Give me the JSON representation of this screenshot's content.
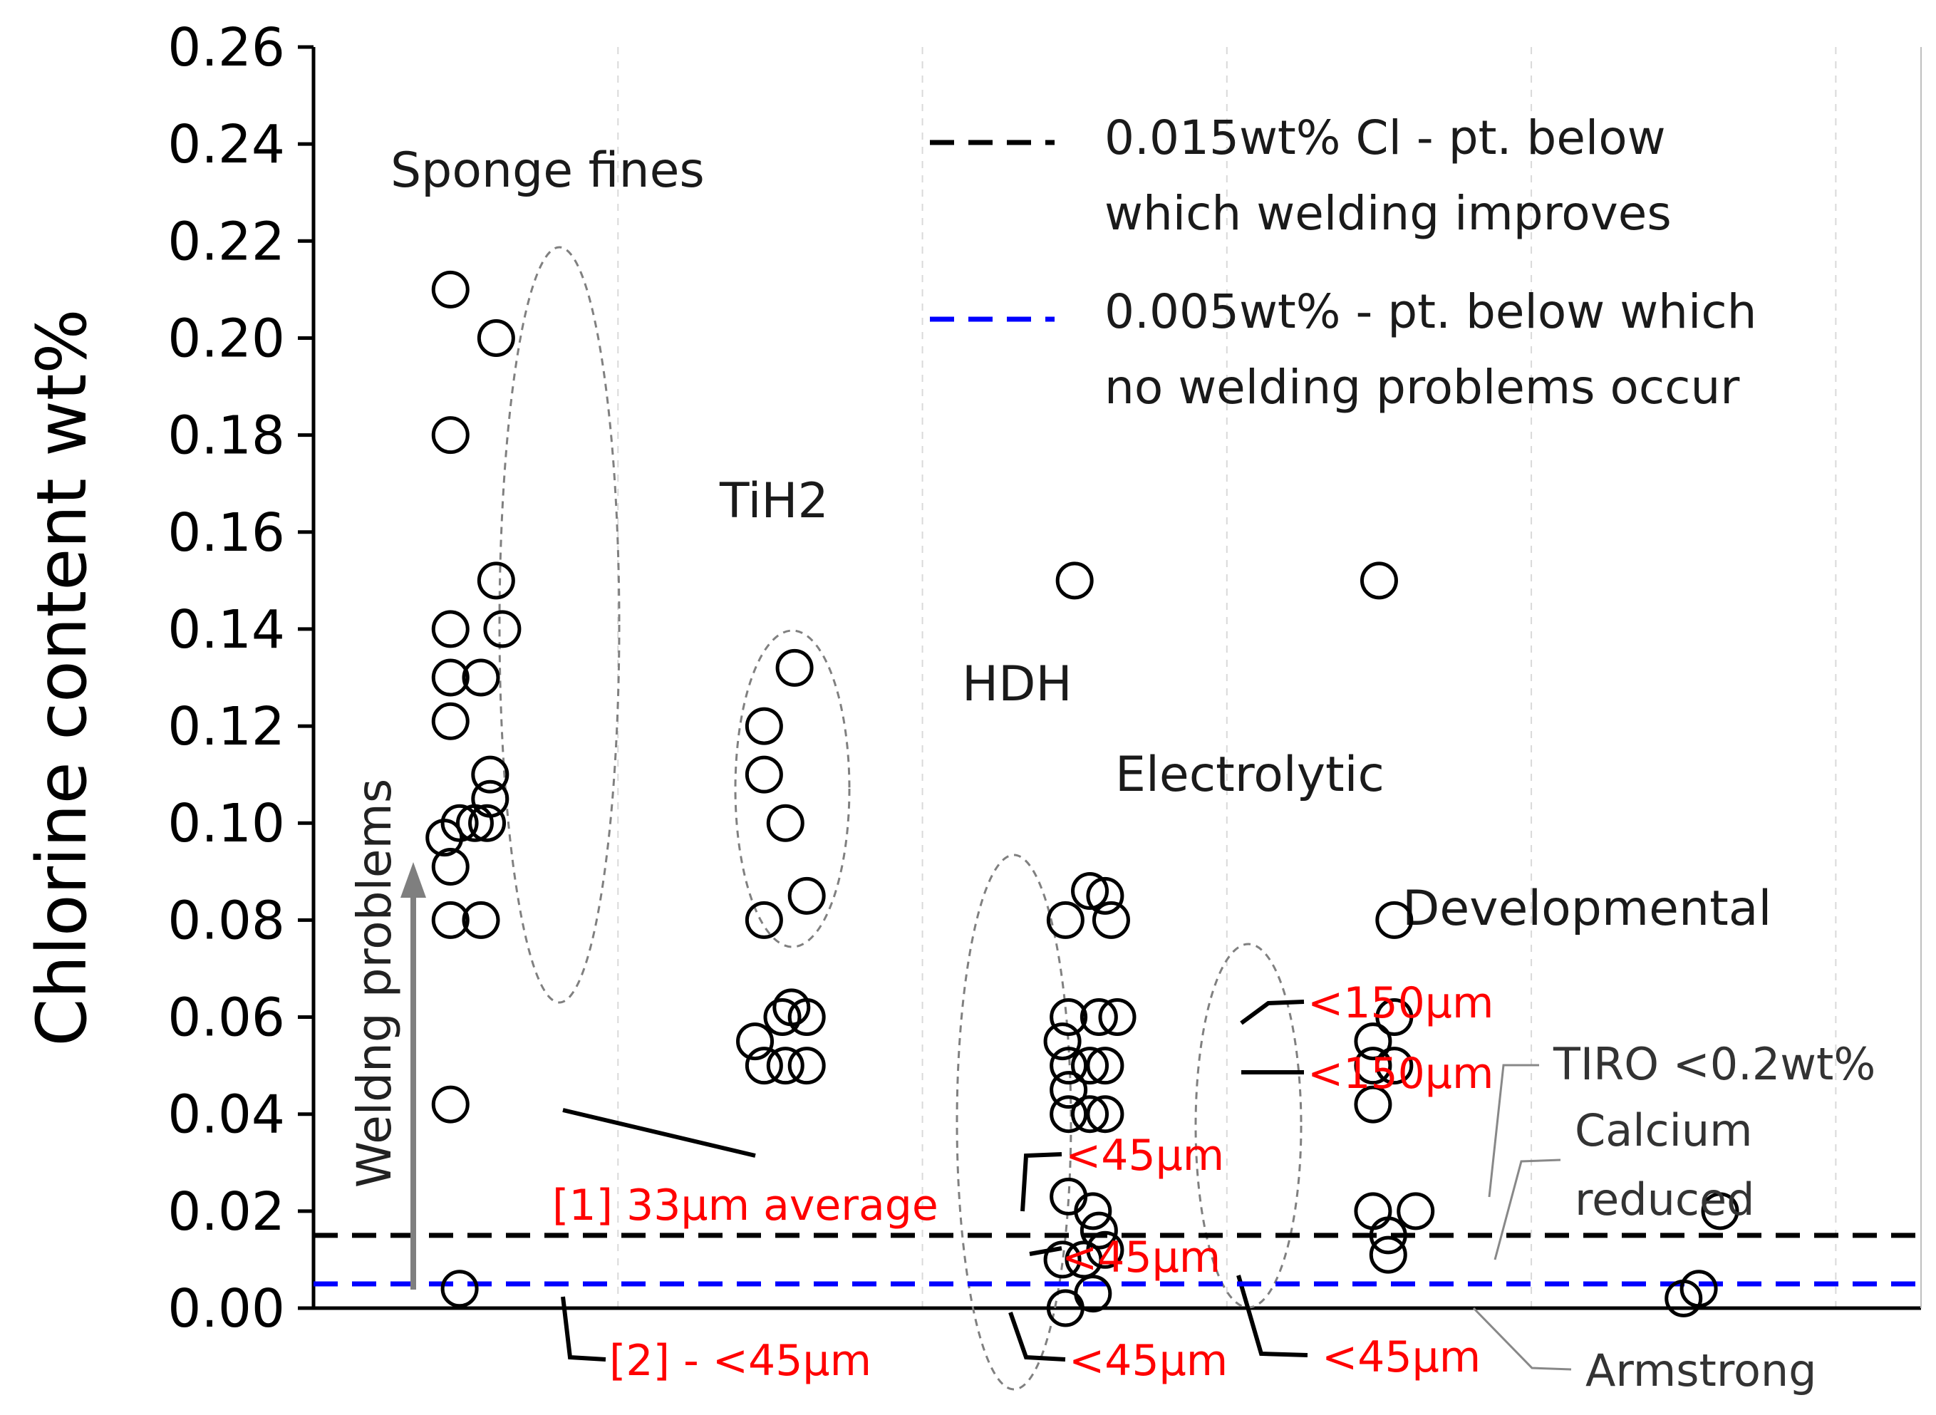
{
  "chart_data": {
    "type": "scatter",
    "title": "",
    "xlabel": "",
    "ylabel": "Chlorine content wt%",
    "ylim": [
      0,
      0.26
    ],
    "y_ticks": [
      "0.00",
      "0.02",
      "0.04",
      "0.06",
      "0.08",
      "0.10",
      "0.12",
      "0.14",
      "0.16",
      "0.18",
      "0.20",
      "0.22",
      "0.24",
      "0.26"
    ],
    "grid": "vertical dashed",
    "groups": [
      {
        "name": "Sponge fines",
        "points": [
          {
            "x": 0.95,
            "y": 0.21
          },
          {
            "x": 1.1,
            "y": 0.2
          },
          {
            "x": 0.95,
            "y": 0.18
          },
          {
            "x": 1.1,
            "y": 0.15
          },
          {
            "x": 0.95,
            "y": 0.14
          },
          {
            "x": 1.12,
            "y": 0.14
          },
          {
            "x": 0.95,
            "y": 0.13
          },
          {
            "x": 1.05,
            "y": 0.13
          },
          {
            "x": 0.95,
            "y": 0.121
          },
          {
            "x": 1.08,
            "y": 0.11
          },
          {
            "x": 1.08,
            "y": 0.105
          },
          {
            "x": 0.98,
            "y": 0.1
          },
          {
            "x": 1.03,
            "y": 0.1
          },
          {
            "x": 1.07,
            "y": 0.1
          },
          {
            "x": 0.93,
            "y": 0.097
          },
          {
            "x": 0.95,
            "y": 0.091
          },
          {
            "x": 0.95,
            "y": 0.08
          },
          {
            "x": 1.05,
            "y": 0.08
          },
          {
            "x": 0.95,
            "y": 0.042
          },
          {
            "x": 0.98,
            "y": 0.004
          }
        ]
      },
      {
        "name": "TiH2",
        "points": [
          {
            "x": 2.08,
            "y": 0.132
          },
          {
            "x": 1.98,
            "y": 0.12
          },
          {
            "x": 1.98,
            "y": 0.11
          },
          {
            "x": 2.05,
            "y": 0.1
          },
          {
            "x": 2.12,
            "y": 0.085
          },
          {
            "x": 1.98,
            "y": 0.08
          },
          {
            "x": 2.07,
            "y": 0.062
          },
          {
            "x": 2.04,
            "y": 0.06
          },
          {
            "x": 2.12,
            "y": 0.06
          },
          {
            "x": 1.95,
            "y": 0.055
          },
          {
            "x": 1.98,
            "y": 0.05
          },
          {
            "x": 2.05,
            "y": 0.05
          },
          {
            "x": 2.12,
            "y": 0.05
          }
        ]
      },
      {
        "name": "HDH",
        "points": [
          {
            "x": 3.0,
            "y": 0.15
          },
          {
            "x": 3.05,
            "y": 0.086
          },
          {
            "x": 3.1,
            "y": 0.085
          },
          {
            "x": 2.97,
            "y": 0.08
          },
          {
            "x": 3.12,
            "y": 0.08
          },
          {
            "x": 2.98,
            "y": 0.06
          },
          {
            "x": 3.08,
            "y": 0.06
          },
          {
            "x": 3.14,
            "y": 0.06
          },
          {
            "x": 2.96,
            "y": 0.055
          },
          {
            "x": 2.98,
            "y": 0.05
          },
          {
            "x": 3.05,
            "y": 0.05
          },
          {
            "x": 3.1,
            "y": 0.05
          },
          {
            "x": 2.98,
            "y": 0.045
          },
          {
            "x": 2.98,
            "y": 0.04
          },
          {
            "x": 3.05,
            "y": 0.04
          },
          {
            "x": 3.1,
            "y": 0.04
          },
          {
            "x": 2.98,
            "y": 0.023
          },
          {
            "x": 3.06,
            "y": 0.02
          },
          {
            "x": 3.08,
            "y": 0.016
          },
          {
            "x": 2.96,
            "y": 0.01
          },
          {
            "x": 3.03,
            "y": 0.01
          },
          {
            "x": 3.1,
            "y": 0.012
          },
          {
            "x": 3.06,
            "y": 0.003
          },
          {
            "x": 2.97,
            "y": 0.0
          }
        ]
      },
      {
        "name": "Electrolytic",
        "points": [
          {
            "x": 4.0,
            "y": 0.15
          },
          {
            "x": 4.05,
            "y": 0.08
          },
          {
            "x": 4.05,
            "y": 0.06
          },
          {
            "x": 3.98,
            "y": 0.055
          },
          {
            "x": 4.05,
            "y": 0.05
          },
          {
            "x": 3.98,
            "y": 0.05
          },
          {
            "x": 3.98,
            "y": 0.042
          },
          {
            "x": 3.98,
            "y": 0.02
          },
          {
            "x": 4.12,
            "y": 0.02
          },
          {
            "x": 4.03,
            "y": 0.015
          },
          {
            "x": 4.03,
            "y": 0.011
          }
        ]
      },
      {
        "name": "Developmental",
        "points": [
          {
            "x": 5.12,
            "y": 0.02
          },
          {
            "x": 5.05,
            "y": 0.004
          },
          {
            "x": 5.0,
            "y": 0.002
          }
        ]
      }
    ],
    "reference_lines": [
      {
        "y": 0.015,
        "color": "#000000",
        "label_line1": "0.015wt% Cl - pt. below",
        "label_line2": "which welding improves"
      },
      {
        "y": 0.005,
        "color": "#0000ff",
        "label_line1": "0.005wt% - pt. below which",
        "label_line2": "no welding problems occur"
      }
    ],
    "annotations": {
      "arrow": "Weldng problems",
      "sponge_avg": "[1] 33µm average",
      "sponge_fine": "[2] - <45µm",
      "hdh_a": "<45µm",
      "hdh_b": "<45µm",
      "hdh_c": "<45µm",
      "elec_a": "<150µm",
      "elec_b": "<150µm",
      "elec_c": "<45µm",
      "tiro": "TIRO <0.2wt%",
      "calcium_1": "Calcium",
      "calcium_2": "reduced",
      "armstrong": "Armstrong"
    }
  },
  "colors": {
    "annotation_red": "#ff0000",
    "reference_black": "#000000",
    "reference_blue": "#0000ff"
  }
}
